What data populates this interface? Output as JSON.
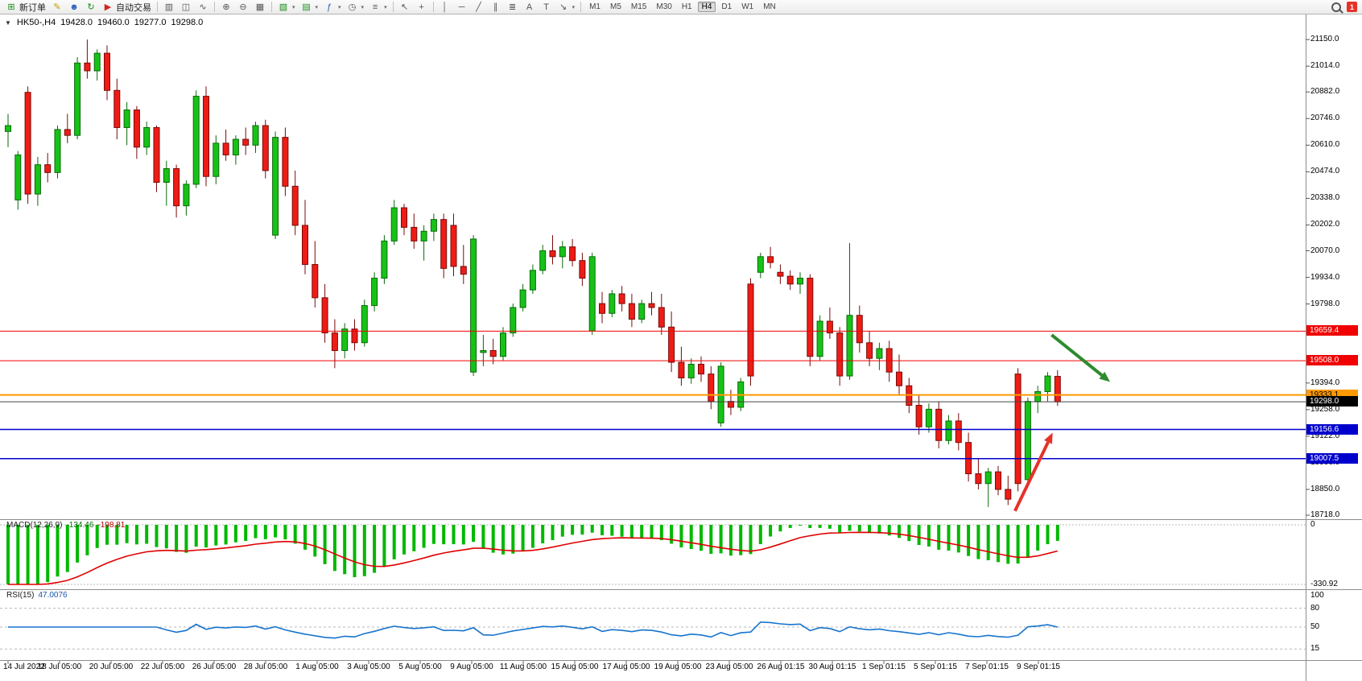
{
  "toolbar": {
    "new_order": "新订单",
    "auto_trading": "自动交易",
    "timeframes": [
      "M1",
      "M5",
      "M15",
      "M30",
      "H1",
      "H4",
      "D1",
      "W1",
      "MN"
    ],
    "active_timeframe": "H4",
    "notification_count": "1"
  },
  "chart_header": {
    "symbol": "HK50-,H4",
    "open": "19428.0",
    "high": "19460.0",
    "low": "19277.0",
    "close": "19298.0"
  },
  "price_axis": {
    "ticks": [
      21150,
      21014,
      20882,
      20746,
      20610,
      20474,
      20338,
      20202,
      20070,
      19934,
      19798,
      19394,
      19258,
      19122,
      18986,
      18850,
      18718
    ],
    "badges": [
      {
        "price": 19659.4,
        "label": "19659.4",
        "bg": "#f00000",
        "fg": "#ffffff"
      },
      {
        "price": 19508.0,
        "label": "19508.0",
        "bg": "#f00000",
        "fg": "#ffffff"
      },
      {
        "price": 19333.1,
        "label": "19333.1",
        "bg": "#ff9900",
        "fg": "#000000"
      },
      {
        "price": 19298.0,
        "label": "19298.0",
        "bg": "#000000",
        "fg": "#ffffff"
      },
      {
        "price": 19156.6,
        "label": "19156.6",
        "bg": "#0000cc",
        "fg": "#ffffff"
      },
      {
        "price": 19007.5,
        "label": "19007.5",
        "bg": "#0000cc",
        "fg": "#ffffff"
      }
    ]
  },
  "hlines": [
    {
      "price": 19659.4,
      "color": "#f00000",
      "width": 1
    },
    {
      "price": 19508.0,
      "color": "#f00000",
      "width": 1
    },
    {
      "price": 19333.1,
      "color": "#ff9900",
      "width": 2
    },
    {
      "price": 19298.0,
      "color": "#444444",
      "width": 1
    },
    {
      "price": 19156.6,
      "color": "#0000cc",
      "width": 1.5
    },
    {
      "price": 19007.5,
      "color": "#0000cc",
      "width": 1.5
    }
  ],
  "arrows": [
    {
      "name": "green-down-arrow",
      "color": "#2e8b2e",
      "from": {
        "i": 105.4,
        "price": 19640
      },
      "to": {
        "i": 111.3,
        "price": 19400
      }
    },
    {
      "name": "red-up-arrow",
      "color": "#e53228",
      "from": {
        "i": 101.7,
        "price": 18740
      },
      "to": {
        "i": 105.5,
        "price": 19140
      }
    }
  ],
  "macd": {
    "name": "MACD(12,26,9)",
    "value_main": "-134.46",
    "value_signal": "-198.81",
    "axis_top": "0",
    "axis_bottom": "-330.92"
  },
  "rsi": {
    "name": "RSI(15)",
    "value": "47.0076",
    "axis": [
      "100",
      "80",
      "50",
      "15"
    ],
    "levels": [
      80,
      50,
      15
    ]
  },
  "time_axis": [
    "14 Jul 2022",
    "18 Jul 05:00",
    "20 Jul 05:00",
    "22 Jul 05:00",
    "26 Jul 05:00",
    "28 Jul 05:00",
    "1 Aug 05:00",
    "3 Aug 05:00",
    "5 Aug 05:00",
    "9 Aug 05:00",
    "11 Aug 05:00",
    "15 Aug 05:00",
    "17 Aug 05:00",
    "19 Aug 05:00",
    "23 Aug 05:00",
    "26 Aug 01:15",
    "30 Aug 01:15",
    "1 Sep 01:15",
    "5 Sep 01:15",
    "7 Sep 01:15",
    "9 Sep 01:15"
  ],
  "chart_data": {
    "type": "candlestick",
    "symbol": "HK50-",
    "timeframe": "H4",
    "up_color": "#17c217",
    "down_color": "#ee1c15",
    "ylim": [
      18718,
      21150
    ],
    "ohlc_format": [
      "open",
      "high",
      "low",
      "close"
    ],
    "candles": [
      [
        20680,
        20770,
        20600,
        20710
      ],
      [
        20330,
        20580,
        20280,
        20560
      ],
      [
        20880,
        20910,
        20310,
        20360
      ],
      [
        20360,
        20550,
        20300,
        20510
      ],
      [
        20510,
        20570,
        20420,
        20470
      ],
      [
        20470,
        20710,
        20440,
        20690
      ],
      [
        20690,
        20770,
        20620,
        20660
      ],
      [
        20660,
        21060,
        20640,
        21030
      ],
      [
        21030,
        21150,
        20950,
        20990
      ],
      [
        20990,
        21100,
        20940,
        21080
      ],
      [
        21080,
        21120,
        20840,
        20890
      ],
      [
        20890,
        20950,
        20640,
        20700
      ],
      [
        20700,
        20830,
        20610,
        20790
      ],
      [
        20790,
        20810,
        20540,
        20600
      ],
      [
        20600,
        20730,
        20560,
        20700
      ],
      [
        20700,
        20710,
        20370,
        20420
      ],
      [
        20420,
        20530,
        20300,
        20490
      ],
      [
        20490,
        20510,
        20240,
        20300
      ],
      [
        20300,
        20430,
        20250,
        20410
      ],
      [
        20410,
        20890,
        20390,
        20860
      ],
      [
        20860,
        20910,
        20400,
        20450
      ],
      [
        20450,
        20660,
        20410,
        20620
      ],
      [
        20620,
        20690,
        20530,
        20560
      ],
      [
        20560,
        20660,
        20510,
        20640
      ],
      [
        20640,
        20700,
        20560,
        20610
      ],
      [
        20610,
        20730,
        20570,
        20710
      ],
      [
        20710,
        20740,
        20440,
        20480
      ],
      [
        20150,
        20680,
        20130,
        20650
      ],
      [
        20650,
        20700,
        20350,
        20400
      ],
      [
        20400,
        20480,
        20150,
        20200
      ],
      [
        20200,
        20330,
        19950,
        20000
      ],
      [
        20000,
        20120,
        19780,
        19830
      ],
      [
        19830,
        19900,
        19600,
        19650
      ],
      [
        19650,
        19720,
        19470,
        19560
      ],
      [
        19560,
        19700,
        19520,
        19670
      ],
      [
        19670,
        19720,
        19560,
        19600
      ],
      [
        19600,
        19820,
        19580,
        19790
      ],
      [
        19790,
        19960,
        19760,
        19930
      ],
      [
        19930,
        20150,
        19900,
        20120
      ],
      [
        20120,
        20330,
        20100,
        20290
      ],
      [
        20290,
        20310,
        20150,
        20190
      ],
      [
        20190,
        20260,
        20080,
        20120
      ],
      [
        20120,
        20200,
        20020,
        20170
      ],
      [
        20170,
        20260,
        20120,
        20230
      ],
      [
        20230,
        20260,
        19930,
        19980
      ],
      [
        20200,
        20260,
        19940,
        19990
      ],
      [
        19990,
        20100,
        19900,
        19950
      ],
      [
        19450,
        20150,
        19430,
        20130
      ],
      [
        19550,
        19640,
        19480,
        19560
      ],
      [
        19560,
        19620,
        19490,
        19530
      ],
      [
        19530,
        19680,
        19510,
        19650
      ],
      [
        19650,
        19800,
        19630,
        19780
      ],
      [
        19780,
        19900,
        19760,
        19870
      ],
      [
        19870,
        20000,
        19850,
        19970
      ],
      [
        19970,
        20100,
        19950,
        20070
      ],
      [
        20070,
        20150,
        20000,
        20040
      ],
      [
        20040,
        20120,
        19980,
        20090
      ],
      [
        20090,
        20130,
        19990,
        20020
      ],
      [
        20020,
        20060,
        19890,
        19930
      ],
      [
        19660,
        20060,
        19640,
        20040
      ],
      [
        19800,
        19860,
        19700,
        19750
      ],
      [
        19750,
        19870,
        19730,
        19850
      ],
      [
        19850,
        19890,
        19760,
        19800
      ],
      [
        19800,
        19850,
        19680,
        19720
      ],
      [
        19720,
        19820,
        19700,
        19800
      ],
      [
        19800,
        19860,
        19740,
        19780
      ],
      [
        19780,
        19850,
        19640,
        19680
      ],
      [
        19680,
        19760,
        19450,
        19500
      ],
      [
        19500,
        19580,
        19380,
        19420
      ],
      [
        19420,
        19520,
        19390,
        19490
      ],
      [
        19490,
        19530,
        19400,
        19440
      ],
      [
        19440,
        19480,
        19260,
        19300
      ],
      [
        19190,
        19500,
        19170,
        19480
      ],
      [
        19300,
        19360,
        19230,
        19270
      ],
      [
        19270,
        19420,
        19250,
        19400
      ],
      [
        19900,
        19930,
        19380,
        19430
      ],
      [
        19960,
        20060,
        19930,
        20040
      ],
      [
        20040,
        20090,
        19980,
        20010
      ],
      [
        19960,
        20000,
        19900,
        19940
      ],
      [
        19940,
        19970,
        19870,
        19900
      ],
      [
        19900,
        19960,
        19850,
        19930
      ],
      [
        19930,
        19950,
        19480,
        19530
      ],
      [
        19530,
        19740,
        19510,
        19710
      ],
      [
        19710,
        19780,
        19620,
        19650
      ],
      [
        19650,
        19680,
        19380,
        19430
      ],
      [
        19430,
        20110,
        19410,
        19740
      ],
      [
        19740,
        19790,
        19550,
        19600
      ],
      [
        19600,
        19660,
        19480,
        19520
      ],
      [
        19520,
        19600,
        19460,
        19570
      ],
      [
        19570,
        19610,
        19400,
        19450
      ],
      [
        19450,
        19540,
        19330,
        19380
      ],
      [
        19380,
        19420,
        19240,
        19280
      ],
      [
        19280,
        19330,
        19130,
        19170
      ],
      [
        19170,
        19290,
        19140,
        19260
      ],
      [
        19260,
        19300,
        19060,
        19100
      ],
      [
        19100,
        19230,
        19080,
        19200
      ],
      [
        19200,
        19240,
        19050,
        19090
      ],
      [
        19090,
        19140,
        18890,
        18930
      ],
      [
        18930,
        19010,
        18850,
        18880
      ],
      [
        18880,
        18960,
        18760,
        18940
      ],
      [
        18940,
        18970,
        18820,
        18850
      ],
      [
        18850,
        18920,
        18770,
        18800
      ],
      [
        19440,
        19470,
        18840,
        18880
      ],
      [
        18900,
        19320,
        18880,
        19300
      ],
      [
        19300,
        19380,
        19240,
        19350
      ],
      [
        19350,
        19450,
        19300,
        19430
      ],
      [
        19428,
        19460,
        19277,
        19298
      ]
    ]
  }
}
